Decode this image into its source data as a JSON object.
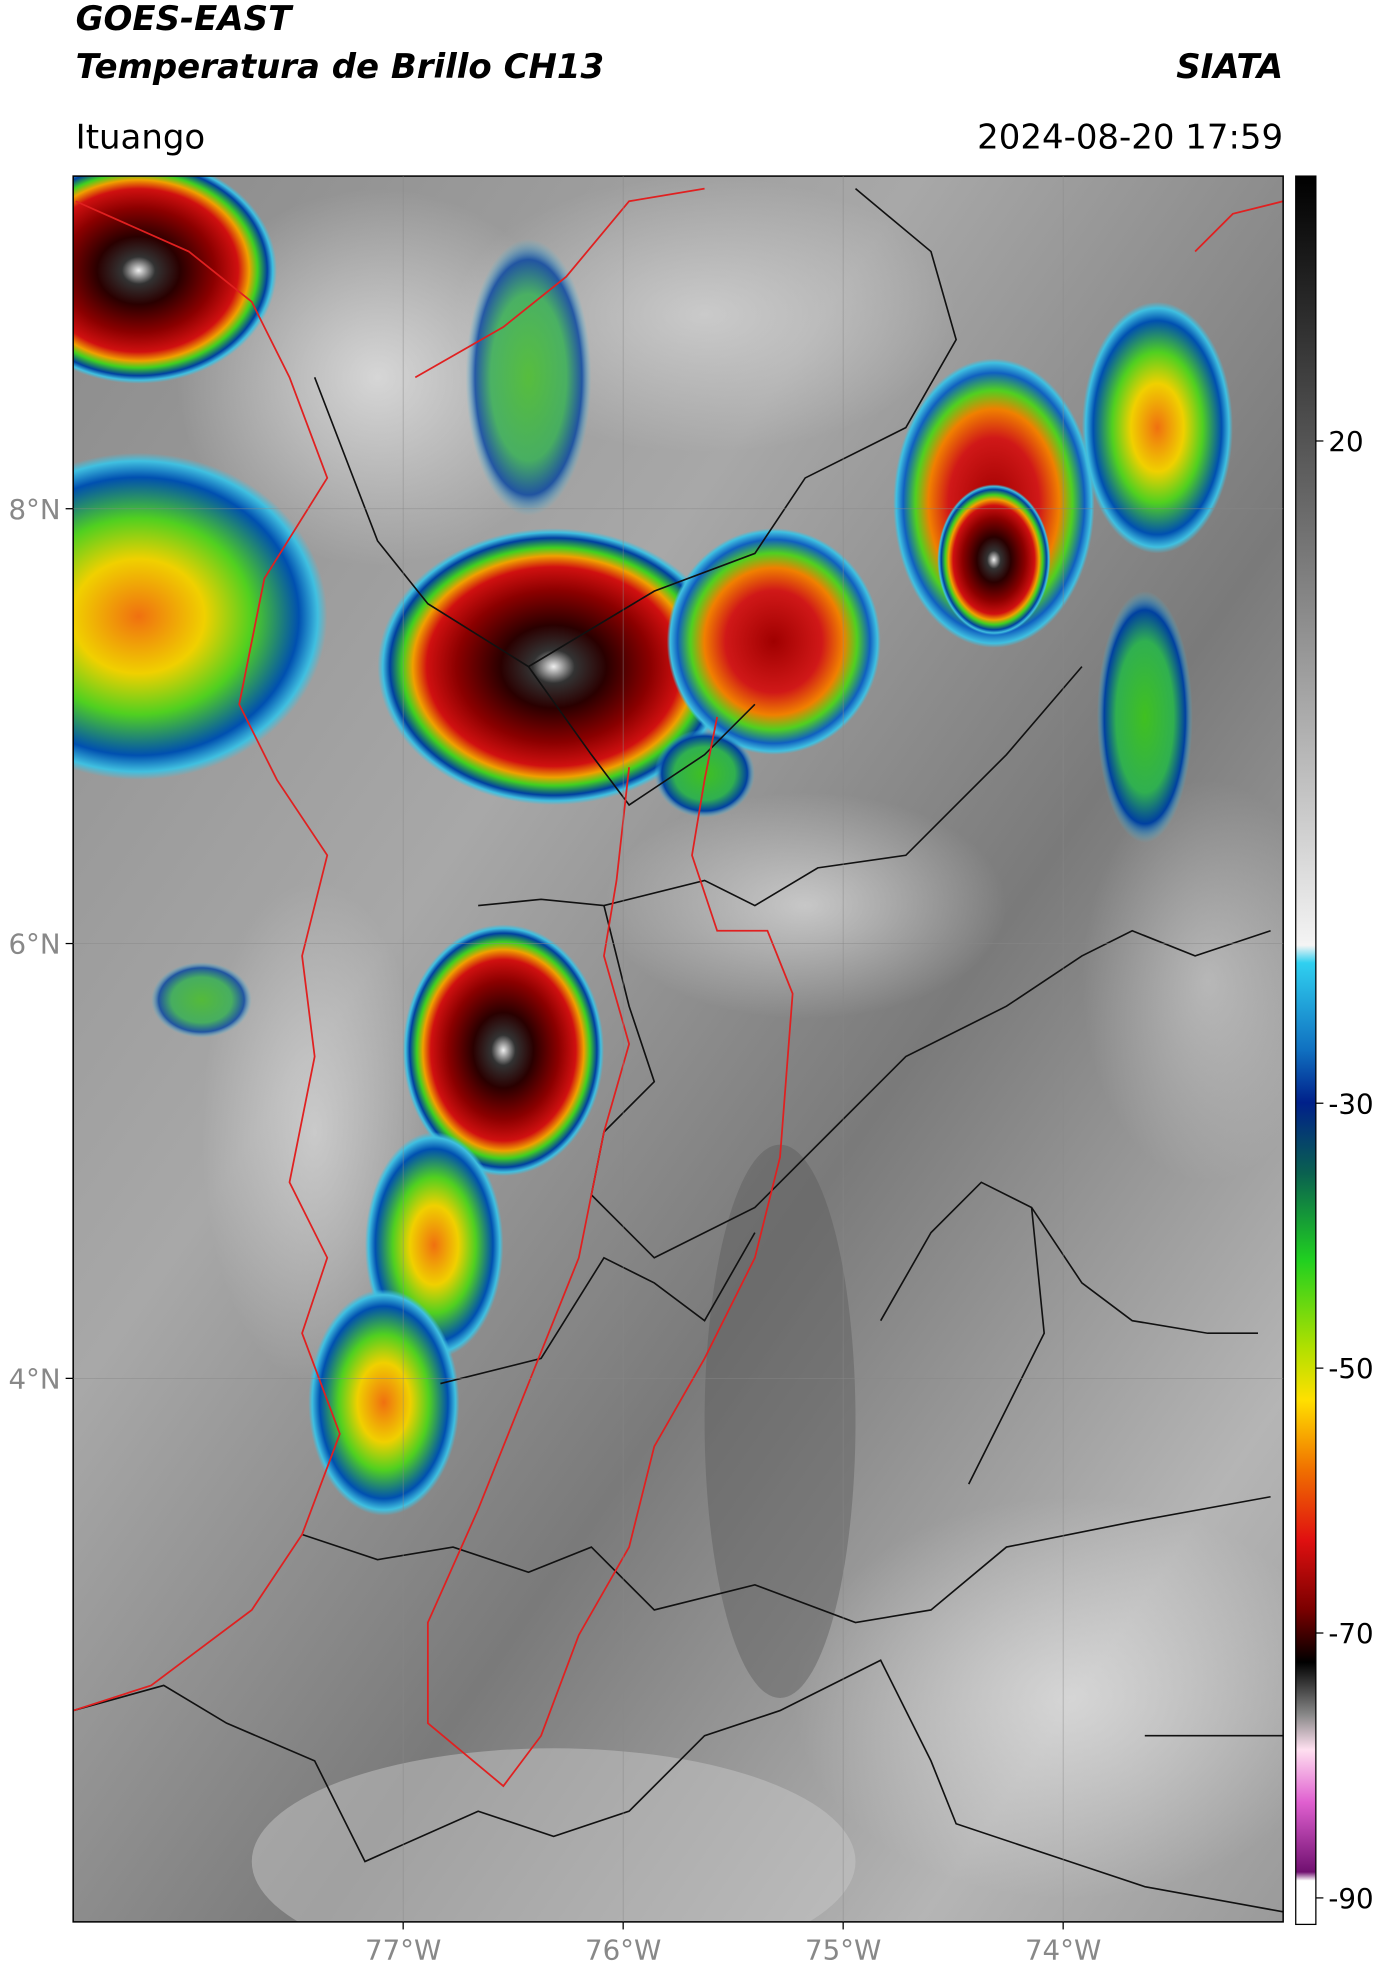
{
  "header": {
    "title": "GOES-EAST",
    "subtitle": "Temperatura de Brillo CH13",
    "source": "SIATA",
    "location": "Ituango",
    "timestamp": "2024-08-20 17:59"
  },
  "map": {
    "lonlim": [
      -78.5,
      -73.0
    ],
    "latlim": [
      1.5,
      9.53
    ],
    "xticks": [
      {
        "value": -77,
        "label": "77°W"
      },
      {
        "value": -76,
        "label": "76°W"
      },
      {
        "value": -75,
        "label": "75°W"
      },
      {
        "value": -74,
        "label": "74°W"
      }
    ],
    "yticks": [
      {
        "value": 8,
        "label": "8°N"
      },
      {
        "value": 6,
        "label": "6°N"
      },
      {
        "value": 4,
        "label": "4°N"
      }
    ]
  },
  "colorbar": {
    "lim": [
      -92,
      40
    ],
    "ticks": [
      20,
      -30,
      -50,
      -70,
      -90
    ]
  }
}
